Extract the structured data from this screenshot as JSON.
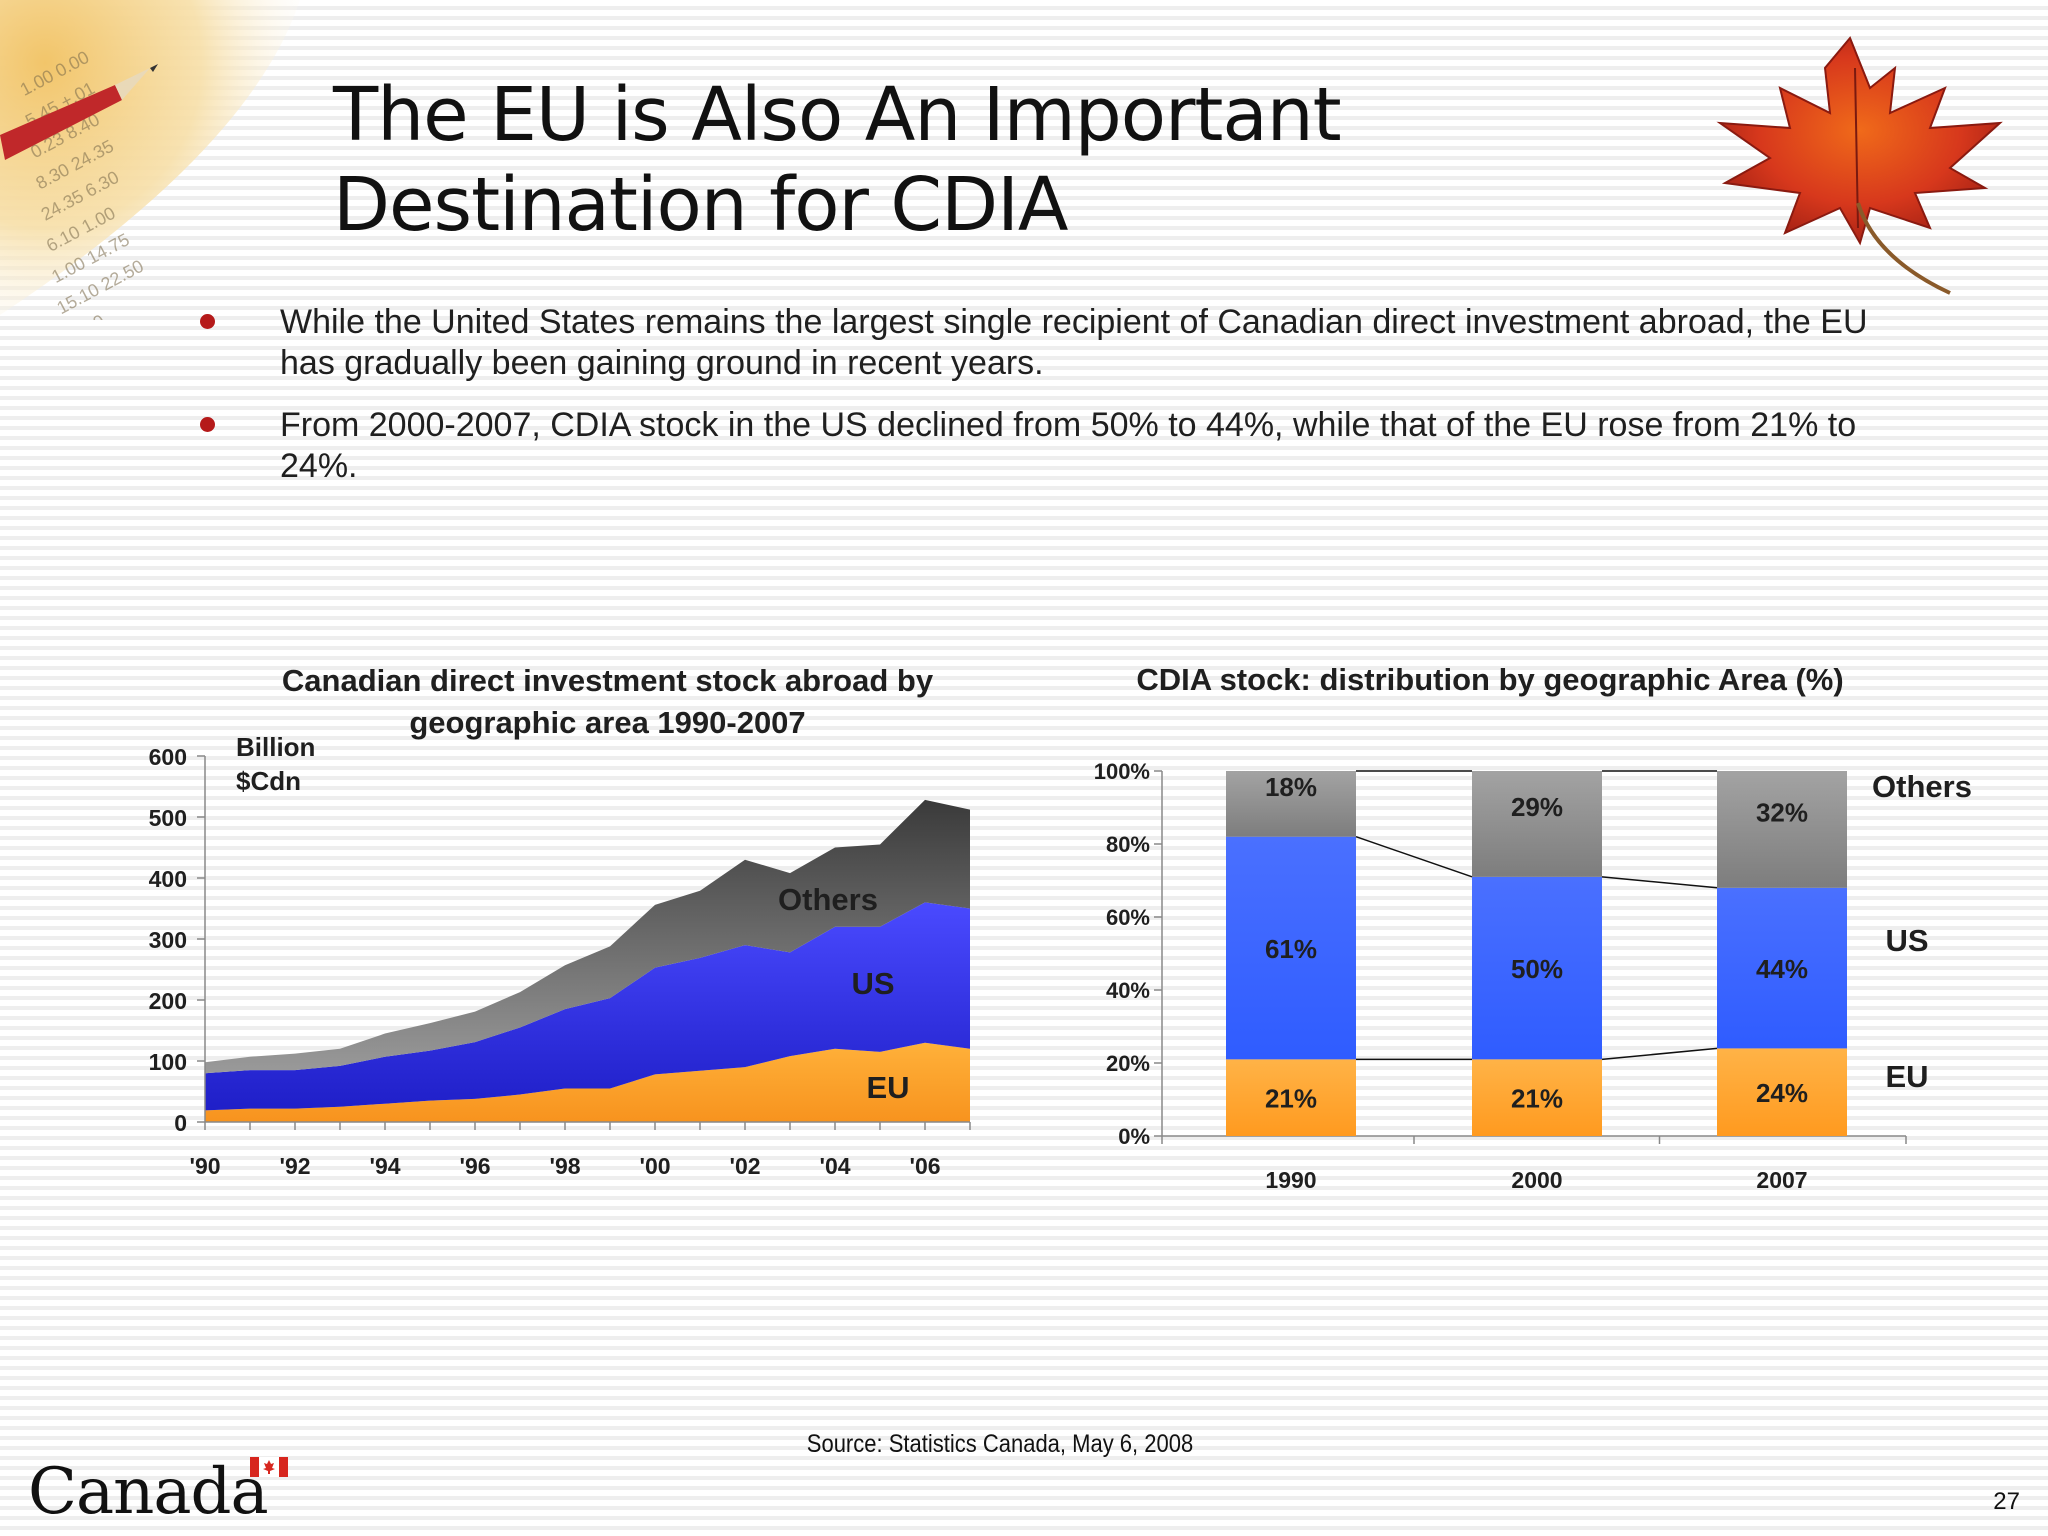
{
  "title": "The EU is Also An Important Destination for CDIA",
  "bullets": [
    "While the United States remains the largest single recipient of Canadian direct investment abroad, the EU has gradually been gaining ground in recent years.",
    "From 2000-2007, CDIA stock in the US declined from 50% to 44%, while that of the EU rose from 21% to 24%."
  ],
  "source": "Source: Statistics Canada, May 6, 2008",
  "page_number": "27",
  "logo_text": "Canada",
  "colors": {
    "eu": "#ff9a1f",
    "us": "#3a5cff",
    "others": "#8a8a8a",
    "bullet": "#b51a1a"
  },
  "chart_data": [
    {
      "type": "area",
      "title": "Canadian direct investment stock abroad by geographic area 1990-2007",
      "ylabel": "Billion $Cdn",
      "ylim": [
        0,
        600
      ],
      "yticks": [
        0,
        100,
        200,
        300,
        400,
        500,
        600
      ],
      "x": [
        1990,
        1991,
        1992,
        1993,
        1994,
        1995,
        1996,
        1997,
        1998,
        1999,
        2000,
        2001,
        2002,
        2003,
        2004,
        2005,
        2006,
        2007
      ],
      "xtick_labels": [
        "'90",
        "'92",
        "'94",
        "'96",
        "'98",
        "'00",
        "'02",
        "'04",
        "'06"
      ],
      "stacked": true,
      "series": [
        {
          "name": "EU",
          "values": [
            19,
            22,
            22,
            25,
            30,
            35,
            38,
            45,
            55,
            55,
            78,
            84,
            90,
            108,
            120,
            115,
            130,
            120
          ]
        },
        {
          "name": "US",
          "values": [
            61,
            63,
            63,
            67,
            77,
            82,
            93,
            110,
            130,
            148,
            175,
            185,
            200,
            170,
            200,
            205,
            230,
            230
          ]
        },
        {
          "name": "Others",
          "values": [
            18,
            22,
            27,
            28,
            38,
            45,
            50,
            58,
            72,
            85,
            103,
            110,
            140,
            130,
            130,
            135,
            168,
            162
          ]
        }
      ],
      "series_labels": [
        "EU",
        "US",
        "Others"
      ]
    },
    {
      "type": "bar",
      "title": "CDIA stock: distribution by geographic Area (%)",
      "stacked": true,
      "categories": [
        "1990",
        "2000",
        "2007"
      ],
      "ylim": [
        0,
        100
      ],
      "ytick_labels": [
        "0%",
        "20%",
        "40%",
        "60%",
        "80%",
        "100%"
      ],
      "series": [
        {
          "name": "EU",
          "values": [
            21,
            21,
            24
          ],
          "labels": [
            "21%",
            "21%",
            "24%"
          ]
        },
        {
          "name": "US",
          "values": [
            61,
            50,
            44
          ],
          "labels": [
            "61%",
            "50%",
            "44%"
          ]
        },
        {
          "name": "Others",
          "values": [
            18,
            29,
            32
          ],
          "labels": [
            "18%",
            "29%",
            "32%"
          ]
        }
      ],
      "legend": "right",
      "series_lines": true
    }
  ]
}
